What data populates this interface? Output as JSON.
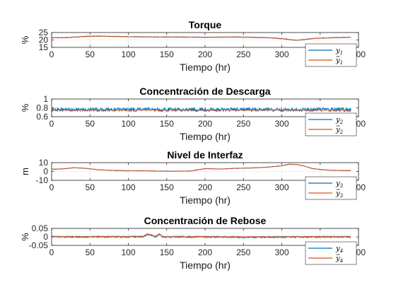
{
  "chart_data": [
    {
      "type": "line",
      "title": "Torque",
      "xlabel": "Tiempo (hr)",
      "ylabel": "%",
      "xlim": [
        0,
        400
      ],
      "ylim": [
        15,
        25
      ],
      "xticks": [
        "0",
        "50",
        "100",
        "150",
        "200",
        "250",
        "300",
        "350",
        "400"
      ],
      "yticks": [
        "15",
        "20",
        "25"
      ],
      "grid": true,
      "legend_placement": "bottom-right",
      "series": [
        {
          "name": "y1",
          "name_base": "y",
          "name_sub": "1",
          "hat": false,
          "color": "#0072BD",
          "x": [
            0,
            20,
            40,
            60,
            80,
            100,
            120,
            140,
            160,
            180,
            200,
            220,
            240,
            260,
            280,
            300,
            310,
            320,
            330,
            340,
            350,
            360,
            370,
            380,
            390
          ],
          "values": [
            21.5,
            21.6,
            22.3,
            22.6,
            22.4,
            22.2,
            22.1,
            22.0,
            22.0,
            21.9,
            21.8,
            21.9,
            22.0,
            21.8,
            21.6,
            20.9,
            20.2,
            19.8,
            20.3,
            21.0,
            21.2,
            21.4,
            21.6,
            21.7,
            21.8
          ],
          "noise": 0.25
        },
        {
          "name": "ŷ1",
          "name_base": "y",
          "name_sub": "1",
          "hat": true,
          "color": "#D95319",
          "x": [
            0,
            20,
            40,
            60,
            80,
            100,
            120,
            140,
            160,
            180,
            200,
            220,
            240,
            260,
            280,
            300,
            310,
            320,
            330,
            340,
            350,
            360,
            370,
            380,
            390
          ],
          "values": [
            21.5,
            21.6,
            22.3,
            22.6,
            22.4,
            22.2,
            22.1,
            22.0,
            22.0,
            21.9,
            21.8,
            21.9,
            22.0,
            21.8,
            21.6,
            20.9,
            20.2,
            19.8,
            20.3,
            21.0,
            21.2,
            21.4,
            21.6,
            21.7,
            21.8
          ],
          "noise": 0.2
        }
      ]
    },
    {
      "type": "line",
      "title": "Concentración de Descarga",
      "xlabel": "Tiempo (hr)",
      "ylabel": "%",
      "xlim": [
        0,
        400
      ],
      "ylim": [
        0.6,
        1
      ],
      "xticks": [
        "0",
        "50",
        "100",
        "150",
        "200",
        "250",
        "300",
        "350",
        "400"
      ],
      "yticks": [
        "0.6",
        "0.8",
        "1"
      ],
      "grid": true,
      "legend_placement": "bottom-right",
      "series": [
        {
          "name": "y2",
          "name_base": "y",
          "name_sub": "2",
          "hat": false,
          "color": "#0072BD",
          "x": [
            0,
            390
          ],
          "values": [
            0.76,
            0.76
          ],
          "noise": 0.045
        },
        {
          "name": "ŷ2",
          "name_base": "y",
          "name_sub": "2",
          "hat": true,
          "color": "#D95319",
          "x": [
            0,
            390
          ],
          "values": [
            0.75,
            0.75
          ],
          "noise": 0.01
        }
      ]
    },
    {
      "type": "line",
      "title": "Nivel de Interfaz",
      "xlabel": "Tiempo (hr)",
      "ylabel": "m",
      "xlim": [
        0,
        400
      ],
      "ylim": [
        -10,
        10
      ],
      "xticks": [
        "0",
        "50",
        "100",
        "150",
        "200",
        "250",
        "300",
        "350",
        "400"
      ],
      "yticks": [
        "-10",
        "0",
        "10"
      ],
      "grid": true,
      "legend_placement": "bottom-right",
      "series": [
        {
          "name": "y3",
          "name_base": "y",
          "name_sub": "3",
          "hat": false,
          "color": "#0072BD",
          "x": [
            0,
            15,
            30,
            45,
            60,
            80,
            100,
            120,
            140,
            160,
            180,
            200,
            220,
            240,
            260,
            280,
            300,
            310,
            320,
            330,
            340,
            360,
            380,
            390
          ],
          "values": [
            2.5,
            3.0,
            4.2,
            3.5,
            2.0,
            1.2,
            0.8,
            0.8,
            0.4,
            0.3,
            0.5,
            3.2,
            2.8,
            3.5,
            4.0,
            4.8,
            6.5,
            8.2,
            7.8,
            6.0,
            3.2,
            1.5,
            1.0,
            1.0
          ],
          "noise": 0.3
        },
        {
          "name": "ŷ3",
          "name_base": "y",
          "name_sub": "3",
          "hat": true,
          "color": "#D95319",
          "x": [
            0,
            15,
            30,
            45,
            60,
            80,
            100,
            120,
            140,
            160,
            180,
            200,
            220,
            240,
            260,
            280,
            300,
            310,
            320,
            330,
            340,
            360,
            380,
            390
          ],
          "values": [
            2.5,
            3.0,
            4.2,
            3.5,
            2.0,
            1.2,
            0.8,
            0.8,
            0.4,
            0.3,
            0.5,
            3.2,
            2.8,
            3.5,
            4.0,
            4.8,
            6.5,
            8.2,
            7.8,
            6.0,
            3.2,
            1.5,
            1.0,
            1.0
          ],
          "noise": 0.25
        }
      ]
    },
    {
      "type": "line",
      "title": "Concentración de Rebose",
      "xlabel": "Tiempo (hr)",
      "ylabel": "%",
      "xlim": [
        0,
        400
      ],
      "ylim": [
        -0.05,
        0.05
      ],
      "xticks": [
        "0",
        "50",
        "100",
        "150",
        "200",
        "250",
        "300",
        "350",
        "400"
      ],
      "yticks": [
        "-0.05",
        "0",
        "0.05"
      ],
      "grid": true,
      "legend_placement": "bottom-right",
      "series": [
        {
          "name": "y4",
          "name_base": "y",
          "name_sub": "4",
          "hat": false,
          "color": "#0072BD",
          "x": [
            0,
            100,
            120,
            125,
            130,
            135,
            140,
            145,
            150,
            200,
            250,
            390
          ],
          "values": [
            0.0,
            0.0,
            0.002,
            0.012,
            0.008,
            0.0,
            0.014,
            0.0,
            0.0,
            0.0,
            -0.002,
            0.0
          ],
          "noise": 0.005
        },
        {
          "name": "ŷ4",
          "name_base": "y",
          "name_sub": "4",
          "hat": true,
          "color": "#D95319",
          "x": [
            0,
            100,
            120,
            125,
            130,
            135,
            140,
            145,
            150,
            200,
            250,
            390
          ],
          "values": [
            0.002,
            0.002,
            0.004,
            0.018,
            0.012,
            0.002,
            0.018,
            0.002,
            0.002,
            0.002,
            0.001,
            0.002
          ],
          "noise": 0.003
        }
      ]
    }
  ]
}
